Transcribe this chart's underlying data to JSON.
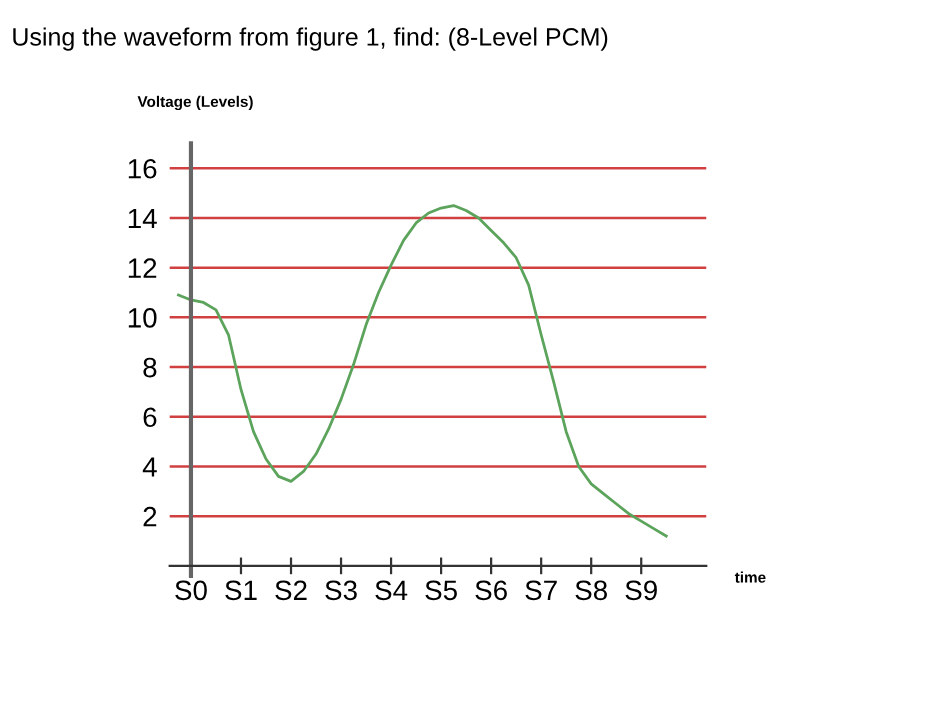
{
  "chart_data": {
    "type": "line",
    "title": "Using the waveform from figure 1, find: (8-Level PCM)",
    "ylabel": "Voltage (Levels)",
    "xlabel": "time",
    "categories": [
      null,
      "S0",
      null,
      null,
      null,
      "S1",
      null,
      null,
      null,
      "S2",
      null,
      null,
      null,
      "S3",
      null,
      null,
      null,
      "S4",
      null,
      null,
      null,
      "S5",
      null,
      null,
      null,
      "S6",
      null,
      null,
      null,
      "S7",
      null,
      null,
      null,
      "S8",
      null,
      null,
      null,
      "S9",
      null,
      null
    ],
    "series": [
      {
        "color": "#5ca35c",
        "values": [
          10.9,
          10.7,
          10.6,
          10.3,
          9.3,
          7.1,
          5.4,
          4.3,
          3.6,
          3.4,
          3.8,
          4.5,
          5.5,
          6.7,
          8.1,
          9.7,
          11.0,
          12.1,
          13.1,
          13.8,
          14.2,
          14.4,
          14.5,
          14.3,
          14.0,
          13.5,
          13.0,
          12.4,
          11.3,
          9.3,
          7.4,
          5.4,
          4.0,
          3.3,
          2.9,
          2.5,
          2.1,
          1.8,
          1.5,
          1.2
        ]
      }
    ],
    "ylim": [
      -0.4,
      17
    ],
    "yticks": [
      2,
      4,
      6,
      8,
      10,
      12,
      14,
      16
    ],
    "grid": "y",
    "marker": "none",
    "line_style": "solid",
    "legend": false
  }
}
